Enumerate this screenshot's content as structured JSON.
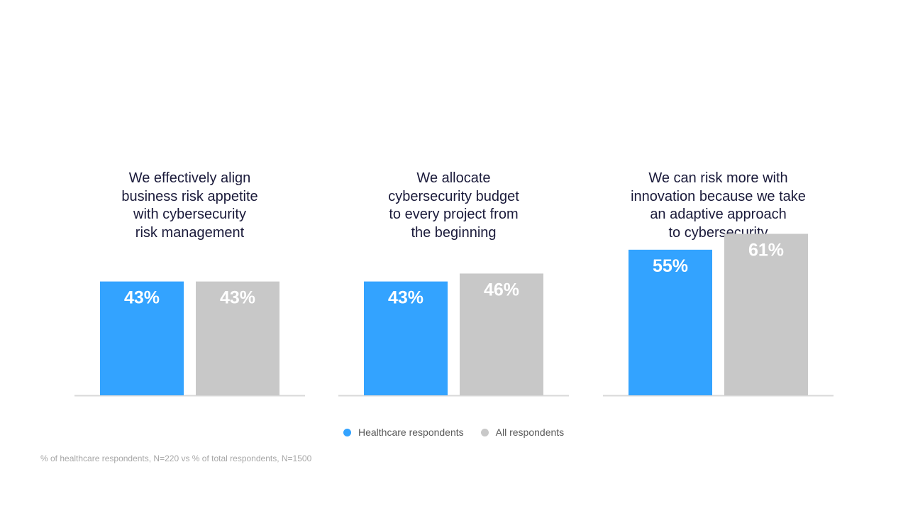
{
  "chart_data": [
    {
      "type": "bar",
      "title": "We effectively align\nbusiness risk appetite\nwith cybersecurity\nrisk management",
      "categories": [
        "Healthcare respondents",
        "All respondents"
      ],
      "values": [
        43,
        43
      ],
      "labels": [
        "43%",
        "43%"
      ],
      "ylim": [
        0,
        100
      ]
    },
    {
      "type": "bar",
      "title": "We allocate\ncybersecurity budget\nto every project from\nthe beginning",
      "categories": [
        "Healthcare respondents",
        "All respondents"
      ],
      "values": [
        43,
        46
      ],
      "labels": [
        "43%",
        "46%"
      ],
      "ylim": [
        0,
        100
      ]
    },
    {
      "type": "bar",
      "title": "We can risk more with\ninnovation because we take\nan adaptive approach\nto cybersecurity",
      "categories": [
        "Healthcare respondents",
        "All respondents"
      ],
      "values": [
        55,
        61
      ],
      "labels": [
        "55%",
        "61%"
      ],
      "ylim": [
        0,
        100
      ]
    }
  ],
  "legend": {
    "items": [
      {
        "label": "Healthcare respondents",
        "color": "#33a3ff"
      },
      {
        "label": "All respondents",
        "color": "#c8c8c8"
      }
    ]
  },
  "colors": {
    "healthcare": "#33a3ff",
    "all": "#c8c8c8",
    "baseline": "#d9d9d9",
    "bar_label": "#ffffff"
  },
  "footnote": "% of healthcare respondents, N=220 vs % of total respondents, N=1500"
}
